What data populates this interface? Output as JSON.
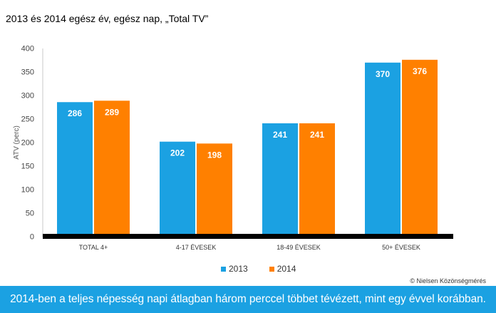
{
  "title": "2013  és 2014  egész év, egész nap, „Total TV”",
  "copyright": "© Nielsen Közönségmérés",
  "banner": "2014-ben a teljes népesség napi átlagban három perccel többet tévézett, mint egy évvel korábban.",
  "chart_data": {
    "type": "bar",
    "categories": [
      "TOTAL 4+",
      "4-17 ÉVESEK",
      "18-49 ÉVESEK",
      "50+ ÉVESEK"
    ],
    "series": [
      {
        "name": "2013",
        "values": [
          286,
          202,
          241,
          370
        ],
        "color": "#1BA1E2"
      },
      {
        "name": "2014",
        "values": [
          289,
          198,
          241,
          376
        ],
        "color": "#FF8000"
      }
    ],
    "ylabel": "ATV (perc)",
    "xlabel": "",
    "ylim": [
      0,
      400
    ],
    "yticks": [
      0,
      50,
      100,
      150,
      200,
      250,
      300,
      350,
      400
    ],
    "grid": false,
    "legend": "bottom",
    "data_labels": true
  }
}
